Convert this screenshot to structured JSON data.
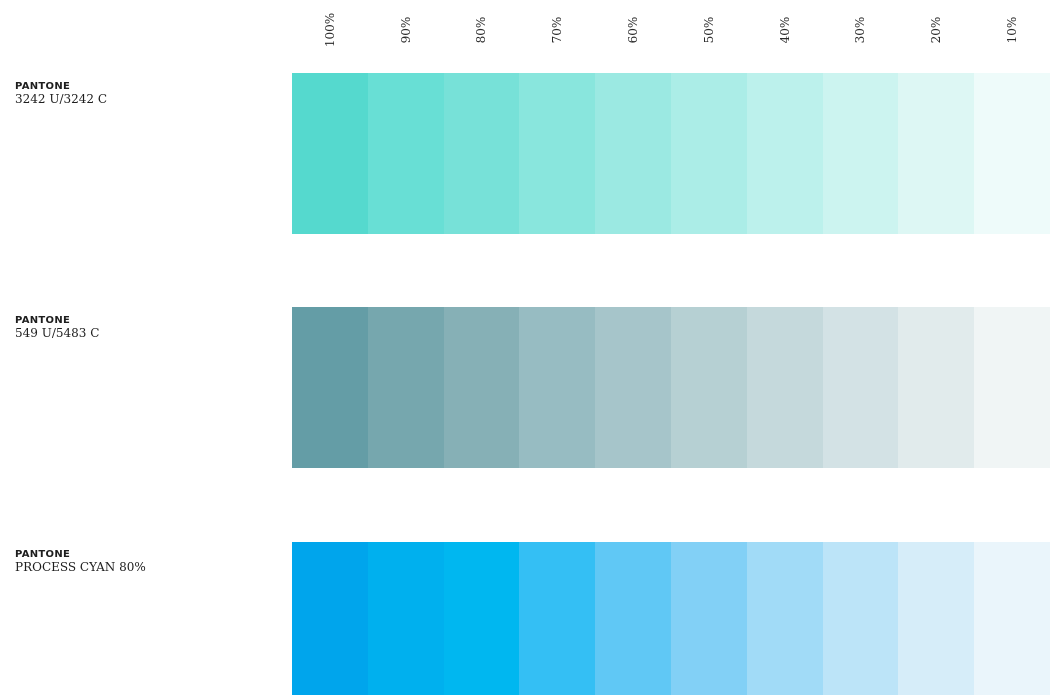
{
  "columns": [
    "100%",
    "90%",
    "80%",
    "70%",
    "60%",
    "50%",
    "40%",
    "30%",
    "20%",
    "10%"
  ],
  "rows": [
    {
      "brand": "PANTONE",
      "code": "3242 U/3242 C",
      "swatches": [
        "#55d9ce",
        "#68dfd5",
        "#77e1d8",
        "#89e6dd",
        "#9be9e2",
        "#abede7",
        "#bcf1ec",
        "#ccf4f0",
        "#ddf7f4",
        "#eefbfa"
      ]
    },
    {
      "brand": "PANTONE",
      "code": "549 U/5483 C",
      "swatches": [
        "#649da6",
        "#76a7ae",
        "#86b0b6",
        "#97bcc2",
        "#a6c5ca",
        "#b6d0d3",
        "#c5d9dc",
        "#d3e2e5",
        "#e1ebec",
        "#f0f5f5"
      ]
    },
    {
      "brand": "PANTONE",
      "code": "PROCESS CYAN 80%",
      "swatches": [
        "#00a5ec",
        "#00b0ee",
        "#00b7f0",
        "#34bff4",
        "#60c8f5",
        "#82d0f6",
        "#a1dbf7",
        "#bce4f8",
        "#d6edf9",
        "#eaf5fb"
      ]
    }
  ]
}
